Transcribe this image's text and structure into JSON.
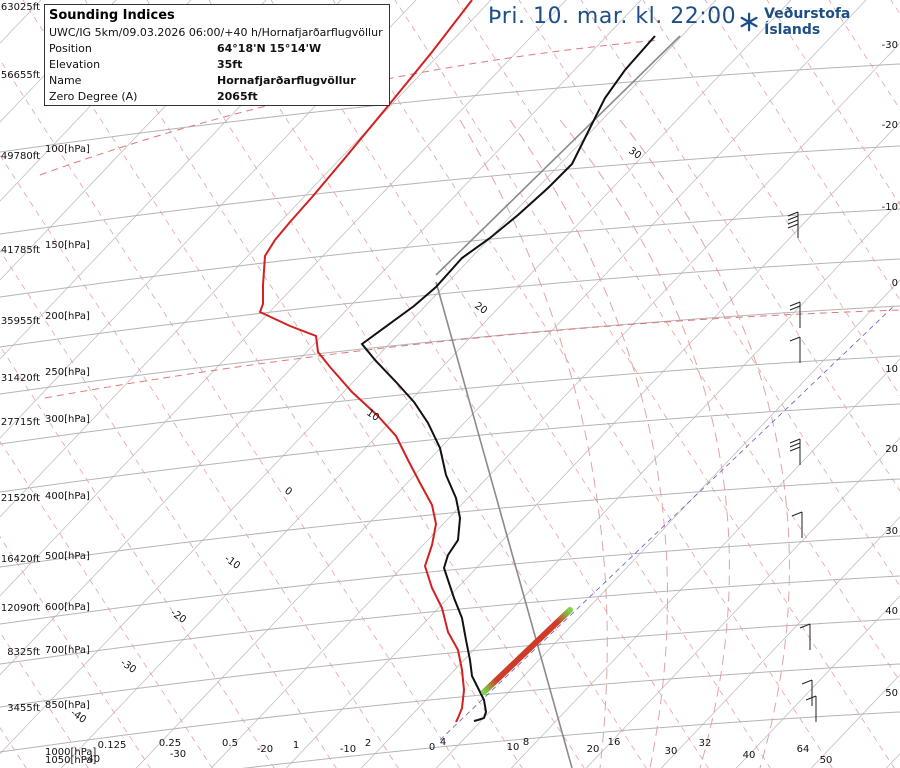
{
  "header": {
    "title": "Þri. 10. mar. kl. 22:00",
    "brand": "Veðurstofa Íslands",
    "brand_color": "#1d4f86"
  },
  "info_box": {
    "title": "Sounding Indices",
    "subtitle": "UWC/IG 5km/09.03.2026 06:00/+40 h/Hornafjarðarflugvöllur",
    "rows": [
      {
        "key": "Position",
        "value": "64°18'N 15°14'W"
      },
      {
        "key": "Elevation",
        "value": "35ft"
      },
      {
        "key": "Name",
        "value": "Hornafjarðarflugvöllur"
      },
      {
        "key": "Zero Degree (A)",
        "value": "2065ft"
      }
    ]
  },
  "chart_data": {
    "type": "line",
    "subtype": "skew-T log-P sounding diagram",
    "altitude_labels": [
      "63025ft",
      "56655ft",
      "49780ft",
      "41785ft",
      "35955ft",
      "31420ft",
      "27715ft",
      "21520ft",
      "16420ft",
      "12090ft",
      "8325ft",
      "3455ft"
    ],
    "pressure_labels": [
      "100[hPa]",
      "150[hPa]",
      "200[hPa]",
      "250[hPa]",
      "300[hPa]",
      "400[hPa]",
      "500[hPa]",
      "600[hPa]",
      "700[hPa]",
      "850[hPa]",
      "1000[hPa]",
      "1050[hPa]"
    ],
    "isotherm_labels": [
      "30",
      "20",
      "10",
      "0",
      "-10",
      "-20",
      "-30",
      "-40"
    ],
    "bottom_labels": [
      "-40",
      "0.125",
      "-30",
      "0.25",
      "0.5",
      "-20",
      "1",
      "-10",
      "2",
      "0",
      "4",
      "10",
      "8",
      "20",
      "16",
      "30",
      "32",
      "40",
      "64",
      "50"
    ],
    "right_labels": [
      "-30",
      "-20",
      "-10",
      "0",
      "10",
      "20",
      "30",
      "40",
      "50"
    ],
    "colors": {
      "temperature": "#d42020",
      "wind_profile": "#111111",
      "reference": "#8a8a8a",
      "isobar": "#b4b4b4",
      "dry_adiabat": "#e07a7a",
      "moist_adiabat": "#e3a3a3",
      "diagonal_grid": "#c0c0c0"
    }
  }
}
